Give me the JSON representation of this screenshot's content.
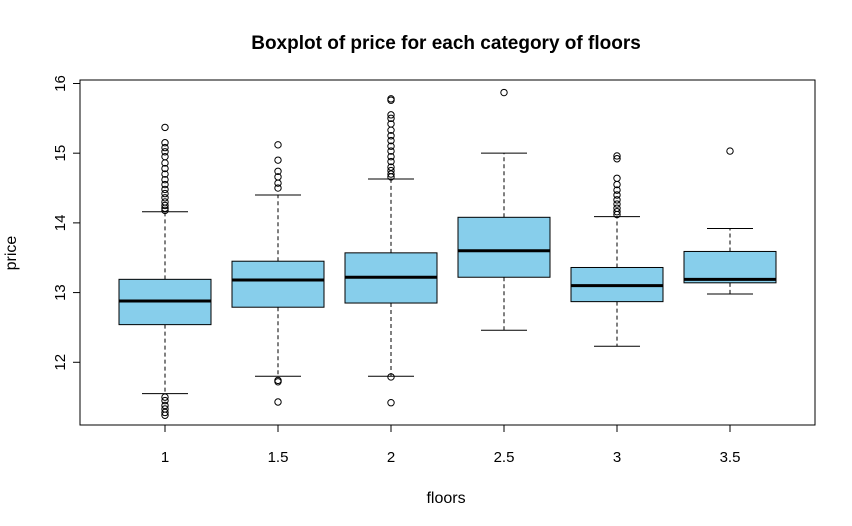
{
  "chart_data": {
    "type": "boxplot",
    "title": "Boxplot of price for each category of floors",
    "xlabel": "floors",
    "ylabel": "price",
    "ylim": [
      11.1,
      16.05
    ],
    "yticks": [
      12,
      13,
      14,
      15,
      16
    ],
    "grid": false,
    "legend": "none",
    "colors": {
      "box_fill": "#87CEEB",
      "stroke": "#000000"
    },
    "categories": [
      "1",
      "1.5",
      "2",
      "2.5",
      "3",
      "3.5"
    ],
    "boxes": [
      {
        "category": "1",
        "whisker_low": 11.55,
        "q1": 12.54,
        "median": 12.88,
        "q3": 13.19,
        "whisker_high": 14.16,
        "outliers": [
          11.24,
          11.28,
          11.33,
          11.38,
          11.45,
          11.5,
          14.18,
          14.21,
          14.25,
          14.3,
          14.36,
          14.42,
          14.48,
          14.55,
          14.62,
          14.7,
          14.78,
          14.86,
          14.95,
          15.02,
          15.08,
          15.15,
          15.37
        ]
      },
      {
        "category": "1.5",
        "whisker_low": 11.8,
        "q1": 12.79,
        "median": 13.18,
        "q3": 13.45,
        "whisker_high": 14.4,
        "outliers": [
          11.43,
          11.72,
          11.74,
          14.5,
          14.57,
          14.66,
          14.74,
          14.9,
          15.12
        ]
      },
      {
        "category": "2",
        "whisker_low": 11.8,
        "q1": 12.85,
        "median": 13.22,
        "q3": 13.57,
        "whisker_high": 14.63,
        "outliers": [
          11.42,
          11.79,
          14.66,
          14.7,
          14.75,
          14.8,
          14.88,
          14.95,
          15.03,
          15.1,
          15.18,
          15.25,
          15.33,
          15.42,
          15.5,
          15.55,
          15.76,
          15.78
        ]
      },
      {
        "category": "2.5",
        "whisker_low": 12.46,
        "q1": 13.22,
        "median": 13.6,
        "q3": 14.08,
        "whisker_high": 15.0,
        "outliers": [
          15.87
        ]
      },
      {
        "category": "3",
        "whisker_low": 12.23,
        "q1": 12.87,
        "median": 13.1,
        "q3": 13.36,
        "whisker_high": 14.09,
        "outliers": [
          14.12,
          14.16,
          14.21,
          14.27,
          14.33,
          14.4,
          14.47,
          14.55,
          14.64,
          14.92,
          14.96
        ]
      },
      {
        "category": "3.5",
        "whisker_low": 12.98,
        "q1": 13.14,
        "median": 13.19,
        "q3": 13.59,
        "whisker_high": 13.92,
        "outliers": [
          15.03
        ]
      }
    ]
  }
}
